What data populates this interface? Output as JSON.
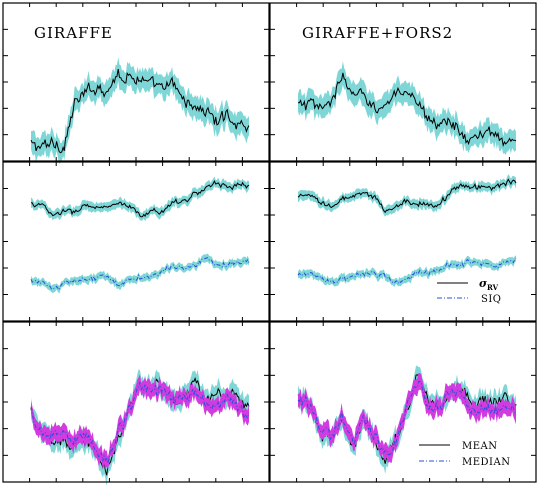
{
  "colors": {
    "band": "#7fd6d6",
    "band_alt": "#d13be0",
    "line": "#000000",
    "line_alt": "#2a50d8",
    "frame": "#000000"
  },
  "titles": {
    "left": "GIRAFFE",
    "right": "GIRAFFE+FORS2"
  },
  "legend_middle": {
    "sigma_symbol": "σ",
    "sigma_subscript": "RV",
    "siq": "SIQ"
  },
  "legend_bottom": {
    "mean": "MEAN",
    "median": "MEDIAN"
  },
  "chart_data": [
    {
      "panel": "top-left",
      "type": "line",
      "title": "GIRAFFE",
      "x": [
        0,
        0.5,
        1,
        1.5,
        2,
        2.5,
        3,
        3.5,
        4,
        4.5,
        5,
        5.5,
        6,
        6.5,
        7,
        7.5,
        8,
        8.5,
        9,
        9.5,
        10
      ],
      "series": [
        {
          "values": [
            0.42,
            0.3,
            0.5,
            0.35,
            1.75,
            2.1,
            2.35,
            2.3,
            2.75,
            2.7,
            2.65,
            2.35,
            2.25,
            2.4,
            1.95,
            1.65,
            1.55,
            1.2,
            1.4,
            1.1,
            1.05
          ],
          "band": 0.35
        }
      ]
    },
    {
      "panel": "top-right",
      "type": "line",
      "title": "GIRAFFE+FORS2",
      "x": [
        0,
        0.5,
        1,
        1.5,
        2,
        2.5,
        3,
        3.5,
        4,
        4.5,
        5,
        5.5,
        6,
        6.5,
        7,
        7.5,
        8,
        8.5,
        9,
        9.5,
        10
      ],
      "series": [
        {
          "values": [
            1.7,
            1.75,
            1.55,
            1.9,
            2.6,
            2.1,
            2.05,
            1.7,
            1.75,
            2.1,
            1.95,
            1.75,
            1.35,
            1.15,
            1.2,
            0.75,
            0.55,
            0.7,
            0.8,
            0.6,
            0.5
          ],
          "band": 0.35
        }
      ]
    },
    {
      "panel": "middle-left",
      "type": "line",
      "x": [
        0,
        0.5,
        1,
        1.5,
        2,
        2.5,
        3,
        3.5,
        4,
        4.5,
        5,
        5.5,
        6,
        6.5,
        7,
        7.5,
        8,
        8.5,
        9,
        9.5,
        10
      ],
      "series": [
        {
          "values": [
            3.75,
            3.7,
            3.35,
            3.5,
            3.45,
            3.75,
            3.6,
            3.6,
            3.75,
            3.6,
            3.35,
            3.5,
            3.45,
            3.85,
            3.85,
            4.05,
            4.25,
            4.45,
            4.3,
            4.4,
            4.35
          ],
          "band": 0.15
        },
        {
          "values": [
            1.2,
            1.1,
            0.95,
            1.1,
            1.2,
            1.25,
            1.3,
            1.35,
            1.15,
            1.2,
            1.3,
            1.35,
            1.5,
            1.6,
            1.6,
            1.75,
            1.95,
            1.75,
            1.75,
            1.85,
            1.85
          ],
          "band": 0.12
        }
      ]
    },
    {
      "panel": "middle-right",
      "type": "line",
      "x": [
        0,
        0.5,
        1,
        1.5,
        2,
        2.5,
        3,
        3.5,
        4,
        4.5,
        5,
        5.5,
        6,
        6.5,
        7,
        7.5,
        8,
        8.5,
        9,
        9.5,
        10
      ],
      "series": [
        {
          "values": [
            3.95,
            4.0,
            3.8,
            3.65,
            3.9,
            3.95,
            4.1,
            3.95,
            3.55,
            3.6,
            3.85,
            3.75,
            3.75,
            3.75,
            4.15,
            4.4,
            4.25,
            4.35,
            4.3,
            4.45,
            4.45
          ],
          "band": 0.15
        },
        {
          "values": [
            1.35,
            1.45,
            1.35,
            1.1,
            1.2,
            1.35,
            1.5,
            1.45,
            1.35,
            1.1,
            1.25,
            1.45,
            1.45,
            1.55,
            1.7,
            1.75,
            1.8,
            1.75,
            1.7,
            1.85,
            1.85
          ],
          "band": 0.12
        }
      ]
    },
    {
      "panel": "bottom-left",
      "type": "line",
      "x": [
        0,
        0.5,
        1,
        1.5,
        2,
        2.5,
        3,
        3.5,
        4,
        4.5,
        5,
        5.5,
        6,
        6.5,
        7,
        7.5,
        8,
        8.5,
        9,
        9.5,
        10
      ],
      "series": [
        {
          "values": [
            2.3,
            1.4,
            1.1,
            1.35,
            1.05,
            1.35,
            0.9,
            0.2,
            1.3,
            2.1,
            3.2,
            2.9,
            2.95,
            2.6,
            2.75,
            3.1,
            2.5,
            2.65,
            2.75,
            2.5,
            2.4
          ],
          "band": 0.3
        },
        {
          "values": [
            2.3,
            1.5,
            1.3,
            1.5,
            1.2,
            1.45,
            1.05,
            0.5,
            1.45,
            2.2,
            3.15,
            2.85,
            2.85,
            2.5,
            2.6,
            2.85,
            2.3,
            2.35,
            2.45,
            2.25,
            2.15
          ],
          "band": 0.25
        }
      ]
    },
    {
      "panel": "bottom-right",
      "type": "line",
      "x": [
        0,
        0.5,
        1,
        1.5,
        2,
        2.5,
        3,
        3.5,
        4,
        4.5,
        5,
        5.5,
        6,
        6.5,
        7,
        7.5,
        8,
        8.5,
        9,
        9.5,
        10
      ],
      "series": [
        {
          "values": [
            2.55,
            2.5,
            1.4,
            1.25,
            1.85,
            1.0,
            1.9,
            1.3,
            0.55,
            1.2,
            2.15,
            3.35,
            2.5,
            2.4,
            2.9,
            3.0,
            2.25,
            2.6,
            2.35,
            2.6,
            2.35
          ],
          "band": 0.28
        },
        {
          "values": [
            2.55,
            2.5,
            1.5,
            1.35,
            1.9,
            1.1,
            1.95,
            1.4,
            0.75,
            1.3,
            2.2,
            3.3,
            2.45,
            2.35,
            2.75,
            2.85,
            2.1,
            2.4,
            2.15,
            2.35,
            2.1
          ],
          "band": 0.25
        }
      ]
    }
  ]
}
